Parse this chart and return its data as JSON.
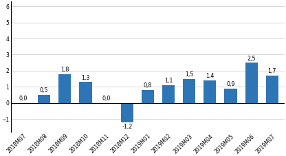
{
  "categories": [
    "2018M07",
    "2018M08",
    "2018M09",
    "2018M10",
    "2018M11",
    "2018M12",
    "2019M01",
    "2019M02",
    "2019M03",
    "2019M04",
    "2019M05",
    "2019M06",
    "2019M07"
  ],
  "values": [
    0.0,
    0.5,
    1.8,
    1.3,
    0.0,
    -1.2,
    0.8,
    1.1,
    1.5,
    1.4,
    0.9,
    2.5,
    1.7
  ],
  "bar_color": "#2E75B6",
  "ylim": [
    -1.8,
    6.3
  ],
  "yticks": [
    -1,
    0,
    1,
    2,
    3,
    4,
    5,
    6
  ],
  "label_fontsize": 5.8,
  "tick_fontsize": 5.5,
  "background_color": "#ffffff",
  "grid_color": "#d0d0d0",
  "bar_width": 0.6
}
